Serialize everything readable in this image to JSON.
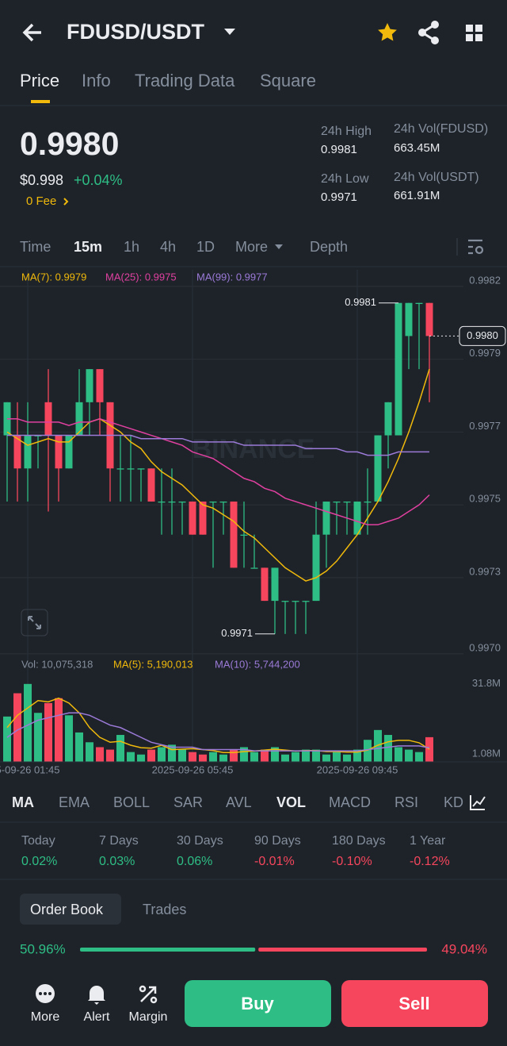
{
  "header": {
    "pair": "FDUSD/USDT"
  },
  "tabs": [
    "Price",
    "Info",
    "Trading Data",
    "Square"
  ],
  "ticker": {
    "price": "0.9980",
    "usd_price": "$0.998",
    "change": "+0.04%",
    "fee": "0 Fee",
    "stats": [
      {
        "label": "24h High",
        "value": "0.9981"
      },
      {
        "label": "24h Vol(FDUSD)",
        "value": "663.45M"
      },
      {
        "label": "24h Low",
        "value": "0.9971"
      },
      {
        "label": "24h Vol(USDT)",
        "value": "661.91M"
      }
    ]
  },
  "intervals": [
    "Time",
    "15m",
    "1h",
    "4h",
    "1D",
    "More",
    "Depth"
  ],
  "chart_data": [
    {
      "type": "candlestick",
      "watermark": "BINANCE",
      "up_color": "#2ebd85",
      "down_color": "#f6465d",
      "ylim": [
        0.99703,
        0.9982
      ],
      "yticks": [
        {
          "value": 0.99815,
          "label": "0.9982"
        },
        {
          "value": 0.99793,
          "label": "0.9979"
        },
        {
          "value": 0.99771,
          "label": "0.9977"
        },
        {
          "value": 0.99749,
          "label": "0.9975"
        },
        {
          "value": 0.99727,
          "label": "0.9973"
        },
        {
          "value": 0.99704,
          "label": "0.9970"
        }
      ],
      "open": [
        0.9977,
        0.9977,
        0.9976,
        0.9977,
        0.9978,
        0.9977,
        0.9976,
        0.9977,
        0.9978,
        0.9979,
        0.9978,
        0.9976,
        0.9976,
        0.9976,
        0.9976,
        0.9975,
        0.9975,
        0.9975,
        0.9975,
        0.9975,
        0.9975,
        0.9975,
        0.9975,
        0.9974,
        0.9973,
        0.9973,
        0.9972,
        0.9972,
        0.9972,
        0.9972,
        0.9972,
        0.9974,
        0.9975,
        0.9975,
        0.9974,
        0.9975,
        0.9975,
        0.9977,
        0.9977,
        0.998,
        0.9981,
        0.9981
      ],
      "high": [
        0.9978,
        0.9978,
        0.9978,
        0.9977,
        0.9979,
        0.9977,
        0.9977,
        0.9979,
        0.9979,
        0.9979,
        0.9978,
        0.9977,
        0.9977,
        0.9976,
        0.9976,
        0.9976,
        0.9976,
        0.9975,
        0.9975,
        0.9975,
        0.9975,
        0.9975,
        0.9975,
        0.9975,
        0.9974,
        0.9973,
        0.9973,
        0.9972,
        0.9972,
        0.9972,
        0.9975,
        0.9975,
        0.9975,
        0.9975,
        0.9975,
        0.9976,
        0.9977,
        0.9978,
        0.9981,
        0.9981,
        0.9981,
        0.9981
      ],
      "low": [
        0.9975,
        0.9975,
        0.9975,
        0.9976,
        0.99747,
        0.9975,
        0.9976,
        0.9977,
        0.9977,
        0.9977,
        0.9975,
        0.9975,
        0.9975,
        0.9975,
        0.9975,
        0.9974,
        0.9974,
        0.9974,
        0.9974,
        0.9974,
        0.9973,
        0.9974,
        0.9973,
        0.9973,
        0.9973,
        0.9972,
        0.9971,
        0.9971,
        0.9971,
        0.9971,
        0.9972,
        0.9973,
        0.9974,
        0.9974,
        0.9974,
        0.9974,
        0.9975,
        0.9976,
        0.9977,
        0.9979,
        0.9979,
        0.9978
      ],
      "close": [
        0.9978,
        0.9976,
        0.9977,
        0.9977,
        0.9977,
        0.9976,
        0.9977,
        0.9978,
        0.9979,
        0.9978,
        0.9976,
        0.9976,
        0.9976,
        0.9976,
        0.9975,
        0.9975,
        0.9975,
        0.9975,
        0.9974,
        0.9974,
        0.9975,
        0.9975,
        0.9973,
        0.9974,
        0.9973,
        0.9972,
        0.9973,
        0.9972,
        0.9972,
        0.9972,
        0.9974,
        0.9975,
        0.9975,
        0.9975,
        0.9975,
        0.9975,
        0.9977,
        0.9978,
        0.9981,
        0.9981,
        0.9981,
        0.998
      ],
      "annotations": [
        {
          "text": "0.9981",
          "value": 0.9981
        },
        {
          "text": "0.9971",
          "value": 0.9971
        }
      ],
      "last": {
        "value": 0.998,
        "label": "0.9980"
      },
      "series": [
        {
          "name": "MA(7): 0.9979",
          "color": "#f0b90b",
          "values": [
            0.99771,
            0.99769,
            0.99767,
            0.99768,
            0.99769,
            0.99768,
            0.99768,
            0.99771,
            0.99774,
            0.99775,
            0.99773,
            0.99771,
            0.99768,
            0.99766,
            0.99762,
            0.99759,
            0.99757,
            0.99755,
            0.99752,
            0.99749,
            0.99748,
            0.99746,
            0.99744,
            0.99741,
            0.99739,
            0.99736,
            0.99733,
            0.9973,
            0.99728,
            0.99726,
            0.99727,
            0.99729,
            0.99732,
            0.99736,
            0.9974,
            0.99745,
            0.9975,
            0.99756,
            0.99763,
            0.99771,
            0.9978,
            0.9979
          ]
        },
        {
          "name": "MA(25): 0.9975",
          "color": "#e040a0",
          "values": [
            0.99775,
            0.99775,
            0.99774,
            0.99774,
            0.99774,
            0.99774,
            0.99773,
            0.99774,
            0.99774,
            0.99775,
            0.99774,
            0.99773,
            0.99772,
            0.99771,
            0.9977,
            0.99769,
            0.99768,
            0.99767,
            0.99765,
            0.99764,
            0.99763,
            0.99761,
            0.99759,
            0.99757,
            0.99756,
            0.99754,
            0.99753,
            0.99751,
            0.9975,
            0.99749,
            0.99748,
            0.99747,
            0.99746,
            0.99745,
            0.99744,
            0.99743,
            0.99743,
            0.99744,
            0.99745,
            0.99747,
            0.99749,
            0.99752
          ]
        },
        {
          "name": "MA(99): 0.9977",
          "color": "#9b7ad8",
          "values": [
            0.9977,
            0.9977,
            0.9977,
            0.9977,
            0.9977,
            0.9977,
            0.9977,
            0.9977,
            0.9977,
            0.9977,
            0.9977,
            0.9977,
            0.9977,
            0.99769,
            0.99769,
            0.99769,
            0.99769,
            0.99769,
            0.99768,
            0.99768,
            0.99768,
            0.99768,
            0.99768,
            0.99767,
            0.99767,
            0.99767,
            0.99767,
            0.99767,
            0.99767,
            0.99766,
            0.99766,
            0.99766,
            0.99766,
            0.99765,
            0.99765,
            0.99764,
            0.99764,
            0.99764,
            0.99765,
            0.99765,
            0.99765,
            0.99765
          ]
        }
      ]
    },
    {
      "type": "bar",
      "ylim": [
        0,
        34000000
      ],
      "yticks": [
        {
          "value": 31800000,
          "label": "31.8M"
        },
        {
          "value": 1080000,
          "label": "1.08M"
        }
      ],
      "x": [
        null,
        null,
        "5-09-26 01:45",
        null,
        null,
        null,
        null,
        null,
        null,
        null,
        null,
        null,
        null,
        null,
        null,
        null,
        null,
        null,
        "2025-09-26 05:45",
        null,
        null,
        null,
        null,
        null,
        null,
        null,
        null,
        null,
        null,
        null,
        null,
        null,
        null,
        null,
        "2025-09-26 09:45",
        null,
        null,
        null,
        null,
        null,
        null,
        null
      ],
      "series": [
        {
          "name": "Vol: 10,075,318",
          "values": [
            18500000,
            28000000,
            31800000,
            20000000,
            24000000,
            26000000,
            19000000,
            12000000,
            8000000,
            6000000,
            5000000,
            11000000,
            4000000,
            3000000,
            5000000,
            6000000,
            7000000,
            5000000,
            4000000,
            3000000,
            4000000,
            3000000,
            5000000,
            6000000,
            4000000,
            5000000,
            6000000,
            3000000,
            4000000,
            5000000,
            5000000,
            3000000,
            4000000,
            3000000,
            5000000,
            9000000,
            13000000,
            11000000,
            6000000,
            5000000,
            4000000,
            10075318
          ]
        },
        {
          "name": "MA(5): 5,190,013",
          "color": "#f0b90b",
          "values": [
            14000000,
            19000000,
            22000000,
            25000000,
            24500000,
            26000000,
            24000000,
            20000000,
            14000000,
            10000000,
            8000000,
            8400000,
            6800000,
            5800000,
            5600000,
            6800000,
            5000000,
            5200000,
            5400000,
            5000000,
            4600000,
            3800000,
            3800000,
            4200000,
            4400000,
            4800000,
            5200000,
            4800000,
            4400000,
            4600000,
            4600000,
            4200000,
            4200000,
            4000000,
            4000000,
            4800000,
            6800000,
            8200000,
            8800000,
            8800000,
            7800000,
            5190013
          ]
        },
        {
          "name": "MA(10): 5,744,200",
          "color": "#9b7ad8",
          "values": [
            10000000,
            13000000,
            15000000,
            17000000,
            18000000,
            19000000,
            20000000,
            20000000,
            19000000,
            17000000,
            15000000,
            14000000,
            12000000,
            10000000,
            8000000,
            7000000,
            6000000,
            6000000,
            6000000,
            5000000,
            5000000,
            5000000,
            5000000,
            5000000,
            4500000,
            4500000,
            4500000,
            4500000,
            4500000,
            4500000,
            4500000,
            4500000,
            4500000,
            4500000,
            4500000,
            5000000,
            5500000,
            6000000,
            6500000,
            6500000,
            6500000,
            5744200
          ]
        }
      ]
    }
  ],
  "indicators": [
    "MA",
    "EMA",
    "BOLL",
    "SAR",
    "AVL",
    "VOL",
    "MACD",
    "RSI",
    "KD"
  ],
  "performance": [
    {
      "period": "Today",
      "change": "0.02%"
    },
    {
      "period": "7 Days",
      "change": "0.03%"
    },
    {
      "period": "30 Days",
      "change": "0.06%"
    },
    {
      "period": "90 Days",
      "change": "-0.01%"
    },
    {
      "period": "180 Days",
      "change": "-0.10%"
    },
    {
      "period": "1 Year",
      "change": "-0.12%"
    }
  ],
  "order_book": {
    "tabs": [
      "Order Book",
      "Trades"
    ],
    "bid": {
      "value": 50.96,
      "label": "50.96%"
    },
    "ask": {
      "value": 49.04,
      "label": "49.04%"
    }
  },
  "bottom_bar": {
    "items": [
      "More",
      "Alert",
      "Margin"
    ],
    "buy": "Buy",
    "sell": "Sell"
  }
}
